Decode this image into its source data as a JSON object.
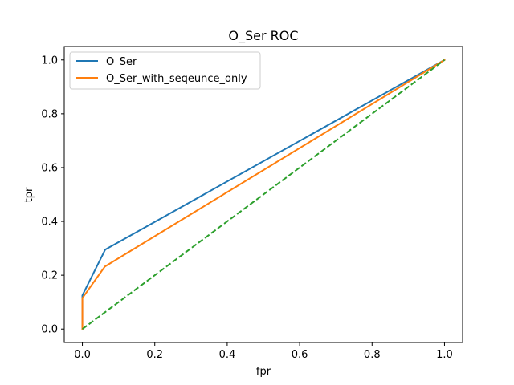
{
  "chart_data": {
    "type": "line",
    "title": "O_Ser ROC",
    "xlabel": "fpr",
    "ylabel": "tpr",
    "xlim": [
      -0.05,
      1.05
    ],
    "ylim": [
      -0.05,
      1.05
    ],
    "xticks": [
      0.0,
      0.2,
      0.4,
      0.6,
      0.8,
      1.0
    ],
    "yticks": [
      0.0,
      0.2,
      0.4,
      0.6,
      0.8,
      1.0
    ],
    "xtick_labels": [
      "0.0",
      "0.2",
      "0.4",
      "0.6",
      "0.8",
      "1.0"
    ],
    "ytick_labels": [
      "0.0",
      "0.2",
      "0.4",
      "0.6",
      "0.8",
      "1.0"
    ],
    "grid": false,
    "legend_position": "upper-left",
    "series": [
      {
        "name": "O_Ser",
        "color": "#1f77b4",
        "dash": "solid",
        "x": [
          0.0,
          0.0,
          0.0,
          0.063,
          1.0
        ],
        "y": [
          0.0,
          0.0,
          0.125,
          0.295,
          1.0
        ]
      },
      {
        "name": "O_Ser_with_seqeunce_only",
        "color": "#ff7f0e",
        "dash": "solid",
        "x": [
          0.0,
          0.0,
          0.0,
          0.062,
          1.0
        ],
        "y": [
          0.0,
          0.0,
          0.115,
          0.232,
          1.0
        ]
      },
      {
        "color": "#2ca02c",
        "dash": "dashed",
        "x": [
          0.0,
          1.0
        ],
        "y": [
          0.0,
          1.0
        ]
      }
    ]
  }
}
